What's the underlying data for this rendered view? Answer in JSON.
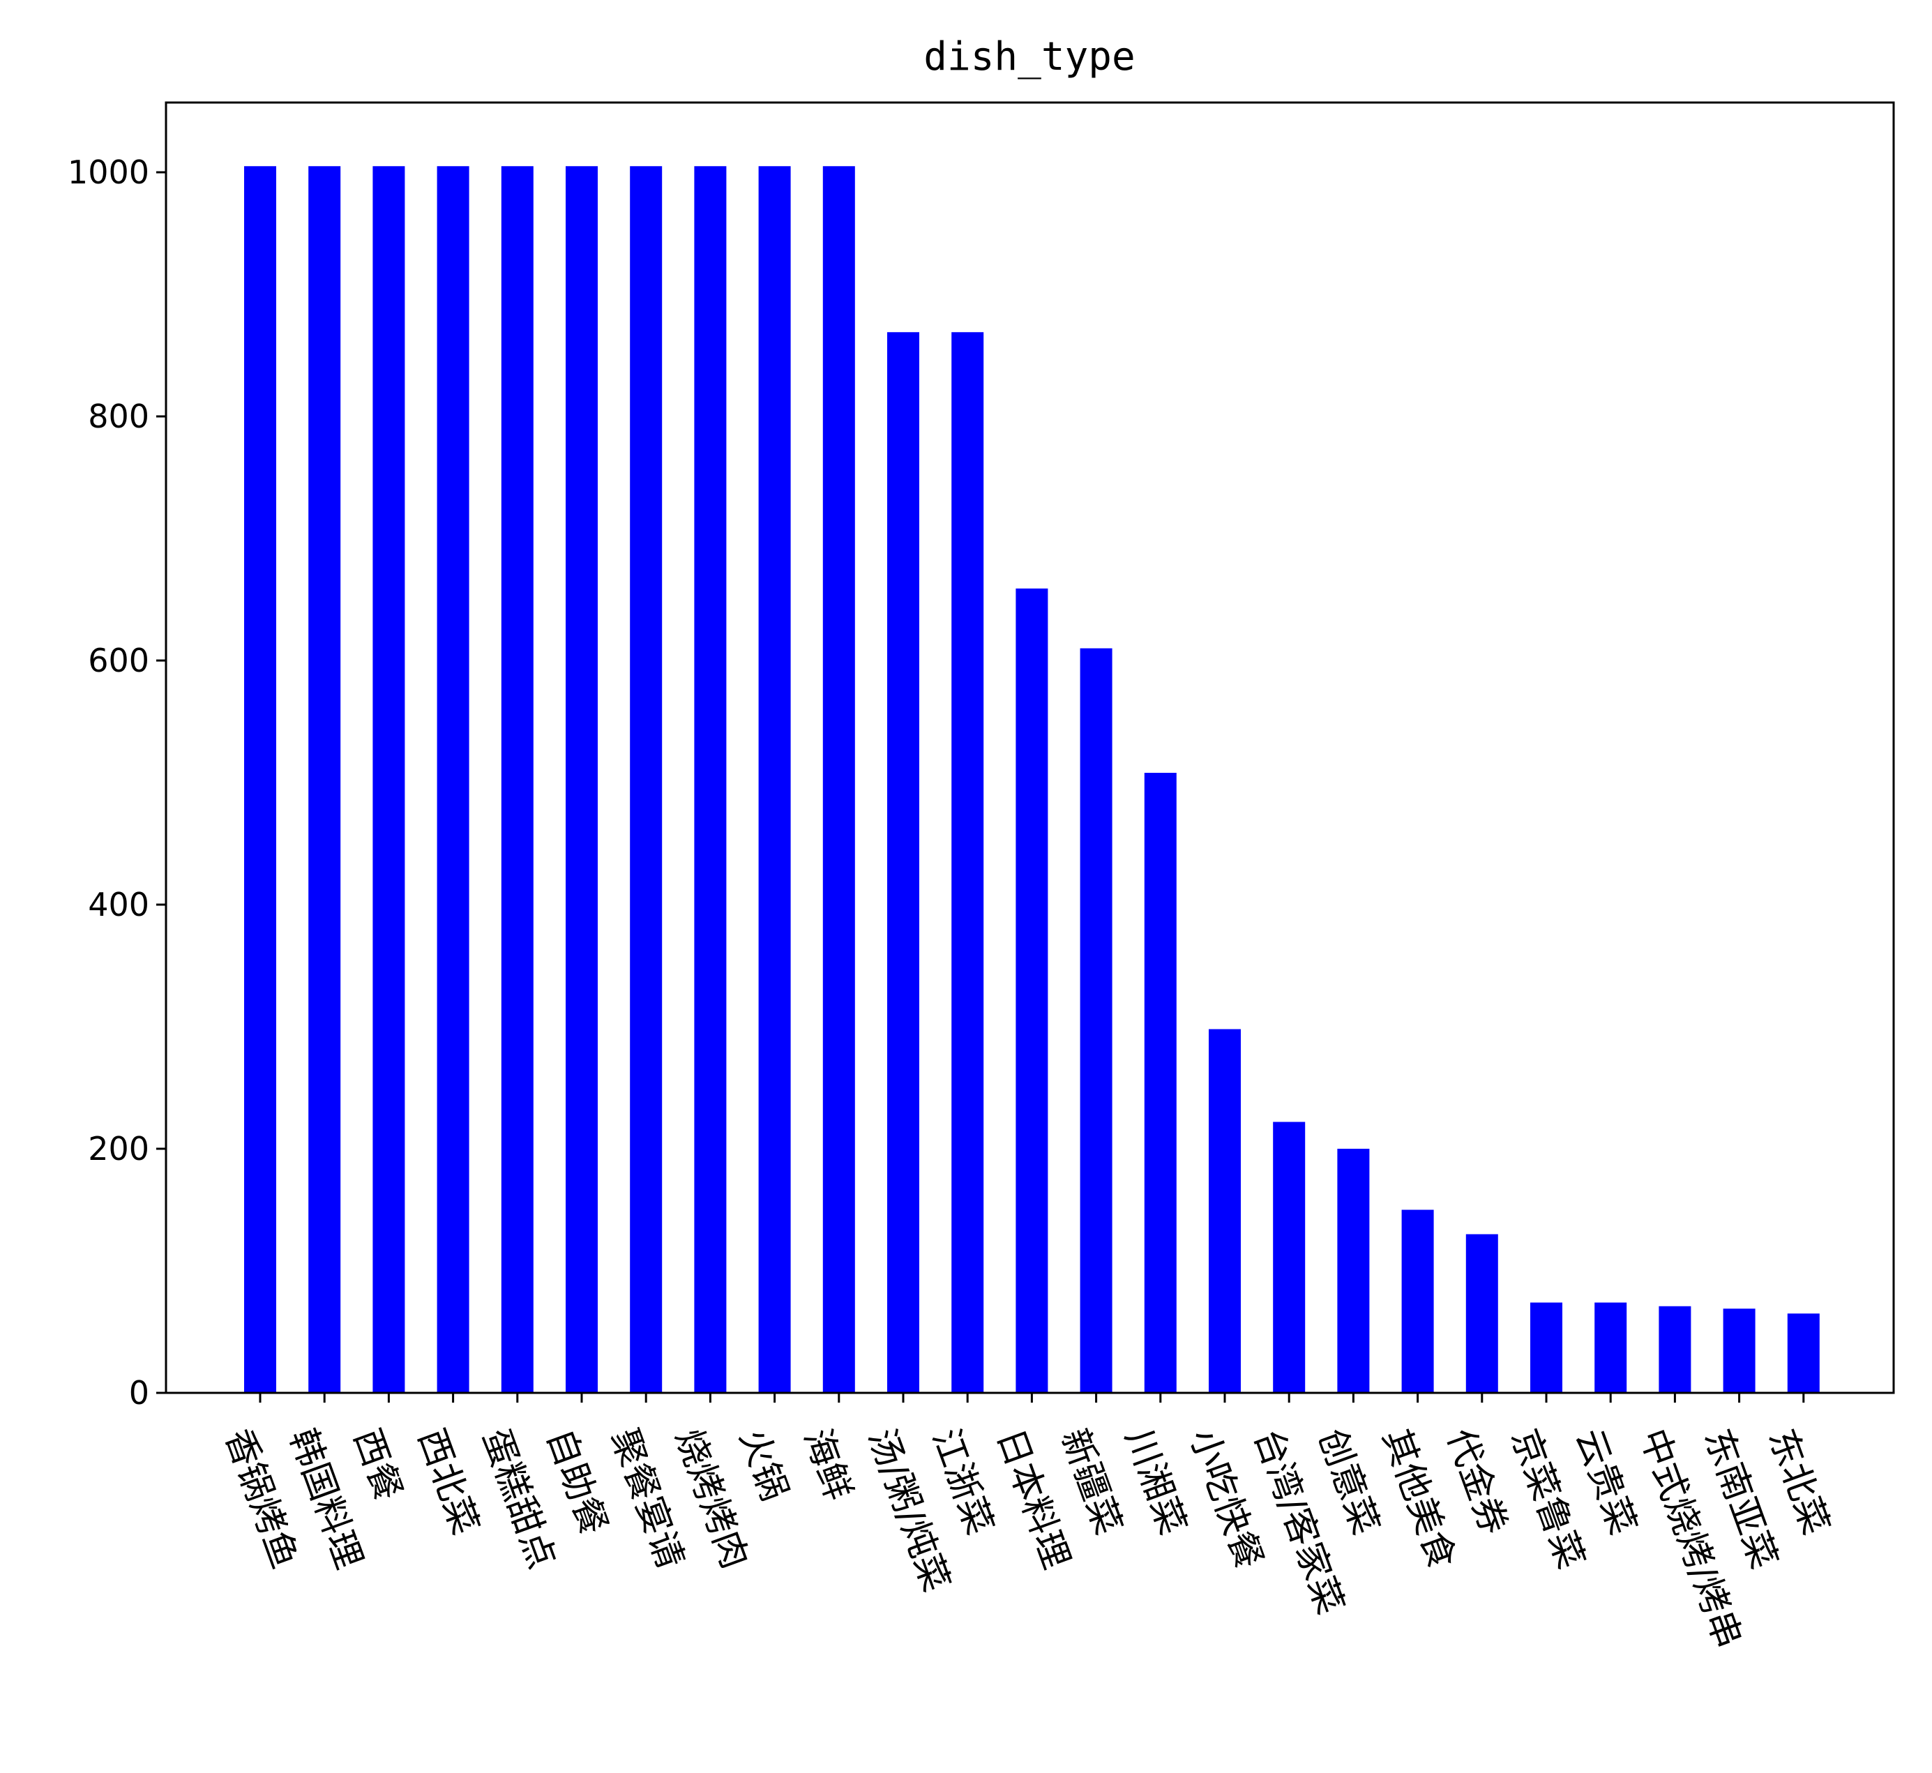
{
  "chart_data": {
    "type": "bar",
    "title": "dish_type",
    "xlabel": "",
    "ylabel": "",
    "ylim": [
      0,
      1060
    ],
    "yticks": [
      0,
      200,
      400,
      600,
      800,
      1000
    ],
    "grid": false,
    "legend": "none",
    "bar_color": "#0000ff",
    "categories": [
      "香锅烤鱼",
      "韩国料理",
      "西餐",
      "西北菜",
      "蛋糕甜点",
      "自助餐",
      "聚餐宴请",
      "烧烤烤肉",
      "火锅",
      "海鲜",
      "汤/粥/炖菜",
      "江浙菜",
      "日本料理",
      "新疆菜",
      "川湘菜",
      "小吃快餐",
      "台湾/客家菜",
      "创意菜",
      "其他美食",
      "代金券",
      "京菜鲁菜",
      "云贵菜",
      "中式烧烤/烤串",
      "东南亚菜",
      "东北菜"
    ],
    "values": [
      1005,
      1005,
      1005,
      1005,
      1005,
      1005,
      1005,
      1005,
      1005,
      1005,
      869,
      869,
      659,
      610,
      508,
      298,
      222,
      200,
      150,
      130,
      74,
      74,
      71,
      69,
      65
    ]
  }
}
